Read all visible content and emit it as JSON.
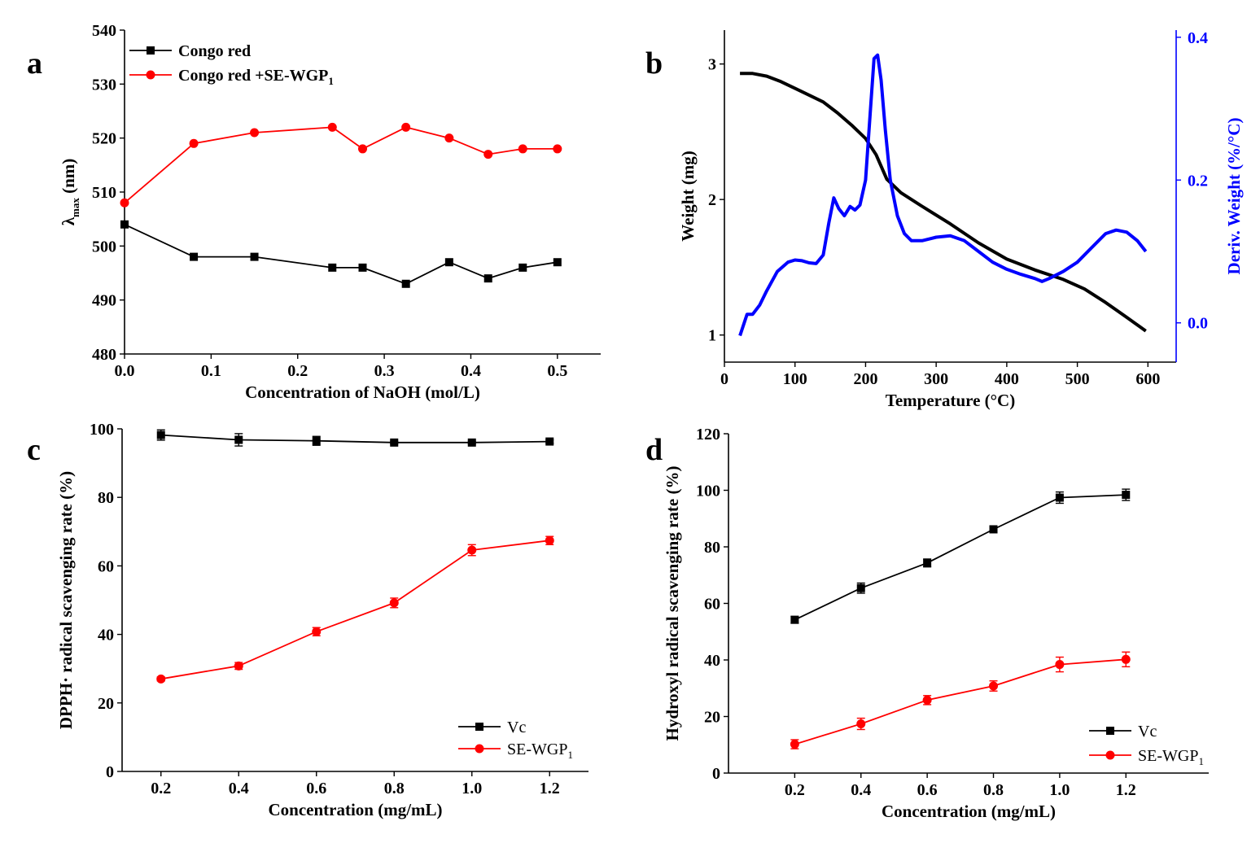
{
  "chart_data": [
    {
      "panel": "a",
      "type": "line",
      "xlabel": "Concentration of NaOH (mol/L)",
      "ylabel": "λmax (nm)",
      "ylabel_main": "λ",
      "ylabel_sub": "max",
      "ylabel_unit": " (nm)",
      "xlim": [
        0,
        0.55
      ],
      "ylim": [
        480,
        540
      ],
      "xticks": [
        "0.0",
        "0.1",
        "0.2",
        "0.3",
        "0.4",
        "0.5"
      ],
      "xtick_values": [
        0,
        0.1,
        0.2,
        0.3,
        0.4,
        0.5
      ],
      "yticks": [
        "480",
        "490",
        "500",
        "510",
        "520",
        "530",
        "540"
      ],
      "ytick_values": [
        480,
        490,
        500,
        510,
        520,
        530,
        540
      ],
      "legend": [
        {
          "label": "Congo red",
          "sub": "",
          "color": "#000000",
          "marker": "square"
        },
        {
          "label": "Congo red +SE-WGP",
          "sub": "1",
          "color": "#ff0000",
          "marker": "circle"
        }
      ],
      "series": [
        {
          "name": "Congo red",
          "color": "#000000",
          "marker": "square",
          "x": [
            0,
            0.08,
            0.15,
            0.24,
            0.275,
            0.325,
            0.375,
            0.42,
            0.46,
            0.5
          ],
          "y": [
            504,
            498,
            498,
            496,
            496,
            493,
            497,
            494,
            496,
            497
          ]
        },
        {
          "name": "Congo red +SE-WGP1",
          "color": "#ff0000",
          "marker": "circle",
          "x": [
            0,
            0.08,
            0.15,
            0.24,
            0.275,
            0.325,
            0.375,
            0.42,
            0.46,
            0.5
          ],
          "y": [
            508,
            519,
            521,
            522,
            518,
            522,
            520,
            517,
            518,
            518
          ]
        }
      ]
    },
    {
      "panel": "b",
      "type": "line",
      "xlabel": "Temperature (°C)",
      "ylabel": "Weight (mg)",
      "y2label": "Deriv. Weight (%/°C)",
      "xlim": [
        0,
        640
      ],
      "ylim": [
        0.8,
        3.25
      ],
      "y2lim": [
        -0.055,
        0.41
      ],
      "xticks": [
        "0",
        "100",
        "200",
        "300",
        "400",
        "500",
        "600"
      ],
      "xtick_values": [
        0,
        100,
        200,
        300,
        400,
        500,
        600
      ],
      "yticks": [
        "1",
        "2",
        "3"
      ],
      "ytick_values": [
        1,
        2,
        3
      ],
      "y2ticks": [
        "0.0",
        "0.2",
        "0.4"
      ],
      "y2tick_values": [
        0,
        0.2,
        0.4
      ],
      "series": [
        {
          "name": "Weight",
          "color": "#000000",
          "axis": "left",
          "x": [
            22,
            40,
            60,
            80,
            100,
            120,
            140,
            160,
            180,
            200,
            215,
            230,
            250,
            280,
            320,
            360,
            400,
            440,
            480,
            510,
            540,
            570,
            597
          ],
          "y": [
            2.93,
            2.93,
            2.91,
            2.87,
            2.82,
            2.77,
            2.72,
            2.64,
            2.55,
            2.45,
            2.33,
            2.15,
            2.05,
            1.95,
            1.82,
            1.68,
            1.56,
            1.48,
            1.41,
            1.34,
            1.24,
            1.13,
            1.03
          ]
        },
        {
          "name": "Deriv. Weight",
          "color": "#0000ff",
          "axis": "right",
          "x": [
            22,
            32,
            40,
            50,
            60,
            75,
            90,
            100,
            110,
            120,
            130,
            140,
            148,
            155,
            162,
            170,
            178,
            185,
            192,
            200,
            207,
            212,
            217,
            222,
            228,
            235,
            245,
            255,
            265,
            280,
            300,
            320,
            340,
            360,
            380,
            400,
            420,
            440,
            450,
            460,
            480,
            500,
            520,
            540,
            555,
            570,
            585,
            597
          ],
          "y": [
            -0.018,
            0.012,
            0.012,
            0.025,
            0.045,
            0.072,
            0.085,
            0.088,
            0.087,
            0.084,
            0.083,
            0.095,
            0.14,
            0.175,
            0.16,
            0.15,
            0.163,
            0.158,
            0.165,
            0.2,
            0.3,
            0.37,
            0.375,
            0.34,
            0.27,
            0.2,
            0.15,
            0.125,
            0.115,
            0.115,
            0.12,
            0.122,
            0.115,
            0.1,
            0.085,
            0.075,
            0.068,
            0.062,
            0.058,
            0.062,
            0.072,
            0.085,
            0.105,
            0.125,
            0.13,
            0.127,
            0.115,
            0.1
          ]
        }
      ]
    },
    {
      "panel": "c",
      "type": "line",
      "xlabel": "Concentration (mg/mL)",
      "ylabel": "DPPH· radical scavenging rate (%)",
      "xlim": [
        0.1,
        1.3
      ],
      "ylim": [
        0,
        100
      ],
      "xticks": [
        "0.2",
        "0.4",
        "0.6",
        "0.8",
        "1.0",
        "1.2"
      ],
      "xtick_values": [
        0.2,
        0.4,
        0.6,
        0.8,
        1.0,
        1.2
      ],
      "yticks": [
        "0",
        "20",
        "40",
        "60",
        "80",
        "100"
      ],
      "ytick_values": [
        0,
        20,
        40,
        60,
        80,
        100
      ],
      "legend": [
        {
          "label": "Vc",
          "sub": "",
          "color": "#000000",
          "marker": "square"
        },
        {
          "label": "SE-WGP",
          "sub": "1",
          "color": "#ff0000",
          "marker": "circle"
        }
      ],
      "series": [
        {
          "name": "Vc",
          "color": "#000000",
          "marker": "square",
          "x": [
            0.2,
            0.4,
            0.6,
            0.8,
            1.0,
            1.2
          ],
          "y": [
            98.2,
            96.8,
            96.5,
            96.0,
            96.0,
            96.3
          ],
          "err": [
            1.5,
            1.8,
            1.3,
            0.4,
            0.4,
            0.5
          ]
        },
        {
          "name": "SE-WGP1",
          "color": "#ff0000",
          "marker": "circle",
          "x": [
            0.2,
            0.4,
            0.6,
            0.8,
            1.0,
            1.2
          ],
          "y": [
            27.0,
            30.8,
            40.8,
            49.2,
            64.6,
            67.4
          ],
          "err": [
            0.6,
            1.0,
            1.2,
            1.4,
            1.6,
            1.2
          ]
        }
      ]
    },
    {
      "panel": "d",
      "type": "line",
      "xlabel": "Concentration (mg/mL)",
      "ylabel": "Hydroxyl radical scavenging rate (%)",
      "xlim": [
        0.0,
        1.45
      ],
      "ylim": [
        0,
        120
      ],
      "xticks": [
        "0.2",
        "0.4",
        "0.6",
        "0.8",
        "1.0",
        "1.2"
      ],
      "xtick_values": [
        0.2,
        0.4,
        0.6,
        0.8,
        1.0,
        1.2
      ],
      "yticks": [
        "0",
        "20",
        "40",
        "60",
        "80",
        "100",
        "120"
      ],
      "ytick_values": [
        0,
        20,
        40,
        60,
        80,
        100,
        120
      ],
      "legend": [
        {
          "label": "Vc",
          "sub": "",
          "color": "#000000",
          "marker": "square"
        },
        {
          "label": "SE-WGP",
          "sub": "1",
          "color": "#ff0000",
          "marker": "circle"
        }
      ],
      "series": [
        {
          "name": "Vc",
          "color": "#000000",
          "marker": "square",
          "x": [
            0.2,
            0.4,
            0.6,
            0.8,
            1.0,
            1.2
          ],
          "y": [
            54.2,
            65.4,
            74.3,
            86.2,
            97.4,
            98.4
          ],
          "err": [
            1.2,
            1.8,
            1.4,
            1.2,
            2.0,
            2.0
          ]
        },
        {
          "name": "SE-WGP1",
          "color": "#ff0000",
          "marker": "circle",
          "x": [
            0.2,
            0.4,
            0.6,
            0.8,
            1.0,
            1.2
          ],
          "y": [
            10.2,
            17.4,
            25.8,
            30.8,
            38.4,
            40.2
          ],
          "err": [
            1.6,
            2.0,
            1.6,
            1.8,
            2.6,
            2.6
          ]
        }
      ]
    }
  ]
}
